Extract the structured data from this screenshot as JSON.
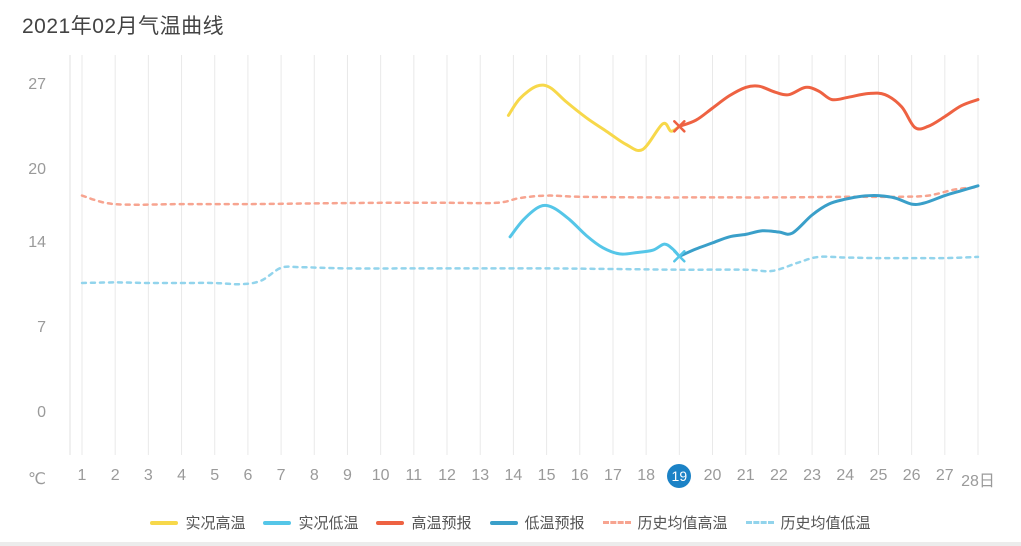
{
  "title": "2021年02月气温曲线",
  "axis": {
    "unit": "℃",
    "y_ticks": [
      27,
      20,
      14,
      7,
      0
    ],
    "x_labels": [
      "1",
      "2",
      "3",
      "4",
      "5",
      "6",
      "7",
      "8",
      "9",
      "10",
      "11",
      "12",
      "13",
      "14",
      "15",
      "16",
      "17",
      "18",
      "19",
      "20",
      "21",
      "22",
      "23",
      "24",
      "25",
      "26",
      "27",
      "28日"
    ],
    "highlighted_label": "19",
    "highlight_color": "#1b82c6",
    "label_color": "#9a9a9a",
    "grid_color": "#e9e9e9"
  },
  "chart_data": {
    "type": "line",
    "title": "2021年02月气温曲线",
    "xlabel": "",
    "ylabel": "℃",
    "xlim": [
      1,
      28
    ],
    "ylim": [
      0,
      29
    ],
    "grid": "vertical",
    "legend_position": "bottom",
    "series": [
      {
        "name": "实况高温",
        "id": "actual-high",
        "color": "#f7d84a",
        "line_style": "solid",
        "points": [
          [
            13.85,
            24.5
          ],
          [
            14.2,
            25.9
          ],
          [
            14.7,
            26.9
          ],
          [
            15.1,
            26.8
          ],
          [
            15.6,
            25.6
          ],
          [
            16.2,
            24.3
          ],
          [
            16.8,
            23.2
          ],
          [
            17.4,
            22.1
          ],
          [
            17.9,
            21.7
          ],
          [
            18.5,
            23.8
          ],
          [
            18.75,
            23.2
          ],
          [
            19,
            23.6
          ]
        ]
      },
      {
        "name": "实况低温",
        "id": "actual-low",
        "color": "#55c6e8",
        "line_style": "solid",
        "points": [
          [
            13.9,
            14.5
          ],
          [
            14.3,
            15.9
          ],
          [
            14.8,
            17.0
          ],
          [
            15.2,
            16.9
          ],
          [
            15.7,
            15.9
          ],
          [
            16.2,
            14.6
          ],
          [
            16.7,
            13.6
          ],
          [
            17.2,
            13.1
          ],
          [
            17.7,
            13.2
          ],
          [
            18.2,
            13.4
          ],
          [
            18.55,
            13.9
          ],
          [
            18.8,
            13.5
          ],
          [
            19,
            12.9
          ]
        ]
      },
      {
        "name": "高温预报",
        "id": "forecast-high",
        "color": "#ee6242",
        "line_style": "solid",
        "points": [
          [
            19,
            23.6
          ],
          [
            19.5,
            24.1
          ],
          [
            20,
            25.1
          ],
          [
            20.5,
            26.1
          ],
          [
            21,
            26.8
          ],
          [
            21.4,
            26.9
          ],
          [
            21.9,
            26.4
          ],
          [
            22.3,
            26.2
          ],
          [
            22.8,
            26.8
          ],
          [
            23.2,
            26.5
          ],
          [
            23.6,
            25.8
          ],
          [
            24.1,
            26.0
          ],
          [
            24.7,
            26.3
          ],
          [
            25.2,
            26.2
          ],
          [
            25.7,
            25.2
          ],
          [
            26.1,
            23.5
          ],
          [
            26.5,
            23.6
          ],
          [
            27,
            24.4
          ],
          [
            27.5,
            25.3
          ],
          [
            28,
            25.8
          ]
        ]
      },
      {
        "name": "低温预报",
        "id": "forecast-low",
        "color": "#3a9fc9",
        "line_style": "solid",
        "points": [
          [
            19,
            12.9
          ],
          [
            19.5,
            13.5
          ],
          [
            20,
            14.0
          ],
          [
            20.5,
            14.5
          ],
          [
            21,
            14.7
          ],
          [
            21.5,
            15.0
          ],
          [
            22,
            14.9
          ],
          [
            22.4,
            14.8
          ],
          [
            23,
            16.3
          ],
          [
            23.5,
            17.2
          ],
          [
            24,
            17.6
          ],
          [
            24.5,
            17.85
          ],
          [
            25,
            17.9
          ],
          [
            25.5,
            17.7
          ],
          [
            26,
            17.2
          ],
          [
            26.4,
            17.3
          ],
          [
            27,
            17.9
          ],
          [
            27.5,
            18.3
          ],
          [
            28,
            18.7
          ]
        ]
      },
      {
        "name": "历史均值高温",
        "id": "hist-avg-high",
        "color": "#f7a490",
        "line_style": "dashed",
        "points": [
          [
            1,
            17.9
          ],
          [
            1.7,
            17.3
          ],
          [
            2.5,
            17.15
          ],
          [
            4,
            17.2
          ],
          [
            6,
            17.2
          ],
          [
            8,
            17.25
          ],
          [
            10,
            17.3
          ],
          [
            12,
            17.3
          ],
          [
            13.5,
            17.3
          ],
          [
            14.2,
            17.7
          ],
          [
            15,
            17.9
          ],
          [
            16,
            17.8
          ],
          [
            18,
            17.75
          ],
          [
            20,
            17.75
          ],
          [
            22,
            17.75
          ],
          [
            24,
            17.8
          ],
          [
            25.5,
            17.8
          ],
          [
            26.5,
            17.9
          ],
          [
            27.3,
            18.4
          ],
          [
            28,
            18.6
          ]
        ]
      },
      {
        "name": "历史均值低温",
        "id": "hist-avg-low",
        "color": "#92d4ec",
        "line_style": "dashed",
        "points": [
          [
            1,
            10.7
          ],
          [
            2,
            10.75
          ],
          [
            3,
            10.7
          ],
          [
            4,
            10.7
          ],
          [
            5,
            10.7
          ],
          [
            5.8,
            10.6
          ],
          [
            6.4,
            10.9
          ],
          [
            7,
            11.95
          ],
          [
            7.6,
            12.0
          ],
          [
            9,
            11.9
          ],
          [
            11,
            11.9
          ],
          [
            13,
            11.9
          ],
          [
            15,
            11.9
          ],
          [
            17,
            11.85
          ],
          [
            19,
            11.8
          ],
          [
            21,
            11.8
          ],
          [
            21.8,
            11.7
          ],
          [
            22.6,
            12.4
          ],
          [
            23.2,
            12.85
          ],
          [
            24,
            12.8
          ],
          [
            25,
            12.75
          ],
          [
            26,
            12.75
          ],
          [
            27,
            12.75
          ],
          [
            28,
            12.85
          ]
        ]
      }
    ],
    "markers": [
      {
        "day": 19,
        "value": 23.6,
        "color": "#ee6242",
        "shape": "x"
      },
      {
        "day": 19,
        "value": 12.9,
        "color": "#55c6e8",
        "shape": "x"
      }
    ]
  }
}
